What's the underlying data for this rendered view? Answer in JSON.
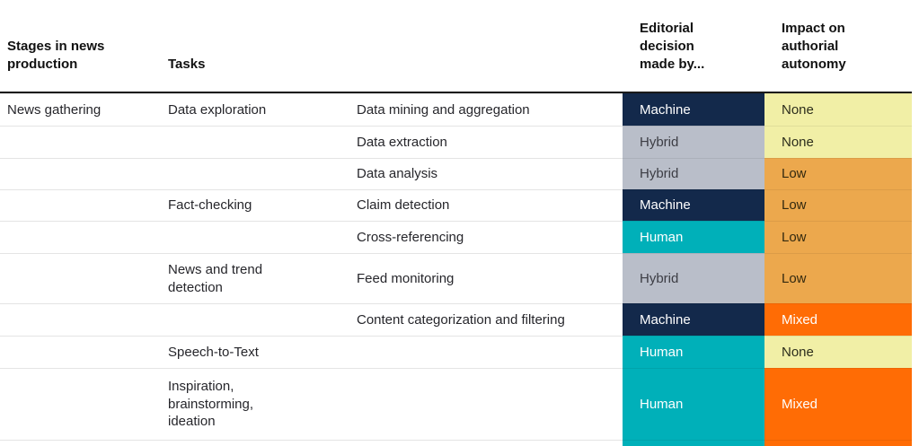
{
  "chart_data": {
    "type": "table",
    "headers": {
      "stage": "Stages in news production",
      "task": "Tasks",
      "subtask": "",
      "decision": "Editorial decision made by...",
      "impact": "Impact on authorial autonomy"
    },
    "rows": [
      {
        "stage": "News gathering",
        "task": "Data exploration",
        "subtask": "Data mining and aggregation",
        "decision": "Machine",
        "impact": "None"
      },
      {
        "stage": "",
        "task": "",
        "subtask": "Data extraction",
        "decision": "Hybrid",
        "impact": "None"
      },
      {
        "stage": "",
        "task": "",
        "subtask": "Data analysis",
        "decision": "Hybrid",
        "impact": "Low"
      },
      {
        "stage": "",
        "task": "Fact-checking",
        "subtask": "Claim detection",
        "decision": "Machine",
        "impact": "Low"
      },
      {
        "stage": "",
        "task": "",
        "subtask": "Cross-referencing",
        "decision": "Human",
        "impact": "Low"
      },
      {
        "stage": "",
        "task": "News and trend detection",
        "subtask": "Feed monitoring",
        "decision": "Hybrid",
        "impact": "Low"
      },
      {
        "stage": "",
        "task": "",
        "subtask": "Content categorization and filtering",
        "decision": "Machine",
        "impact": "Mixed"
      },
      {
        "stage": "",
        "task": "Speech-to-Text",
        "subtask": "",
        "decision": "Human",
        "impact": "None"
      },
      {
        "stage": "",
        "task": "Inspiration, brainstorming, ideation",
        "subtask": "",
        "decision": "Human",
        "impact": "Mixed"
      },
      {
        "stage": "",
        "task": "",
        "subtask": "",
        "decision": "Human",
        "impact": "Mixed",
        "partial": true
      }
    ],
    "legend": {
      "decision_values": [
        "Machine",
        "Hybrid",
        "Human"
      ],
      "impact_values": [
        "None",
        "Low",
        "Mixed"
      ]
    },
    "colors": {
      "decision": {
        "Machine": "#13294b",
        "Hybrid": "#b9bec9",
        "Human": "#00b0b9"
      },
      "decision_text": {
        "Machine": "#ffffff",
        "Hybrid": "#3c3d44",
        "Human": "#ffffff"
      },
      "impact": {
        "None": "#f1efa6",
        "Low": "#eca84d",
        "Mixed": "#ff6c05"
      },
      "impact_text": {
        "None": "#2c2d1c",
        "Low": "#33290f",
        "Mixed": "#ffffff"
      }
    }
  }
}
